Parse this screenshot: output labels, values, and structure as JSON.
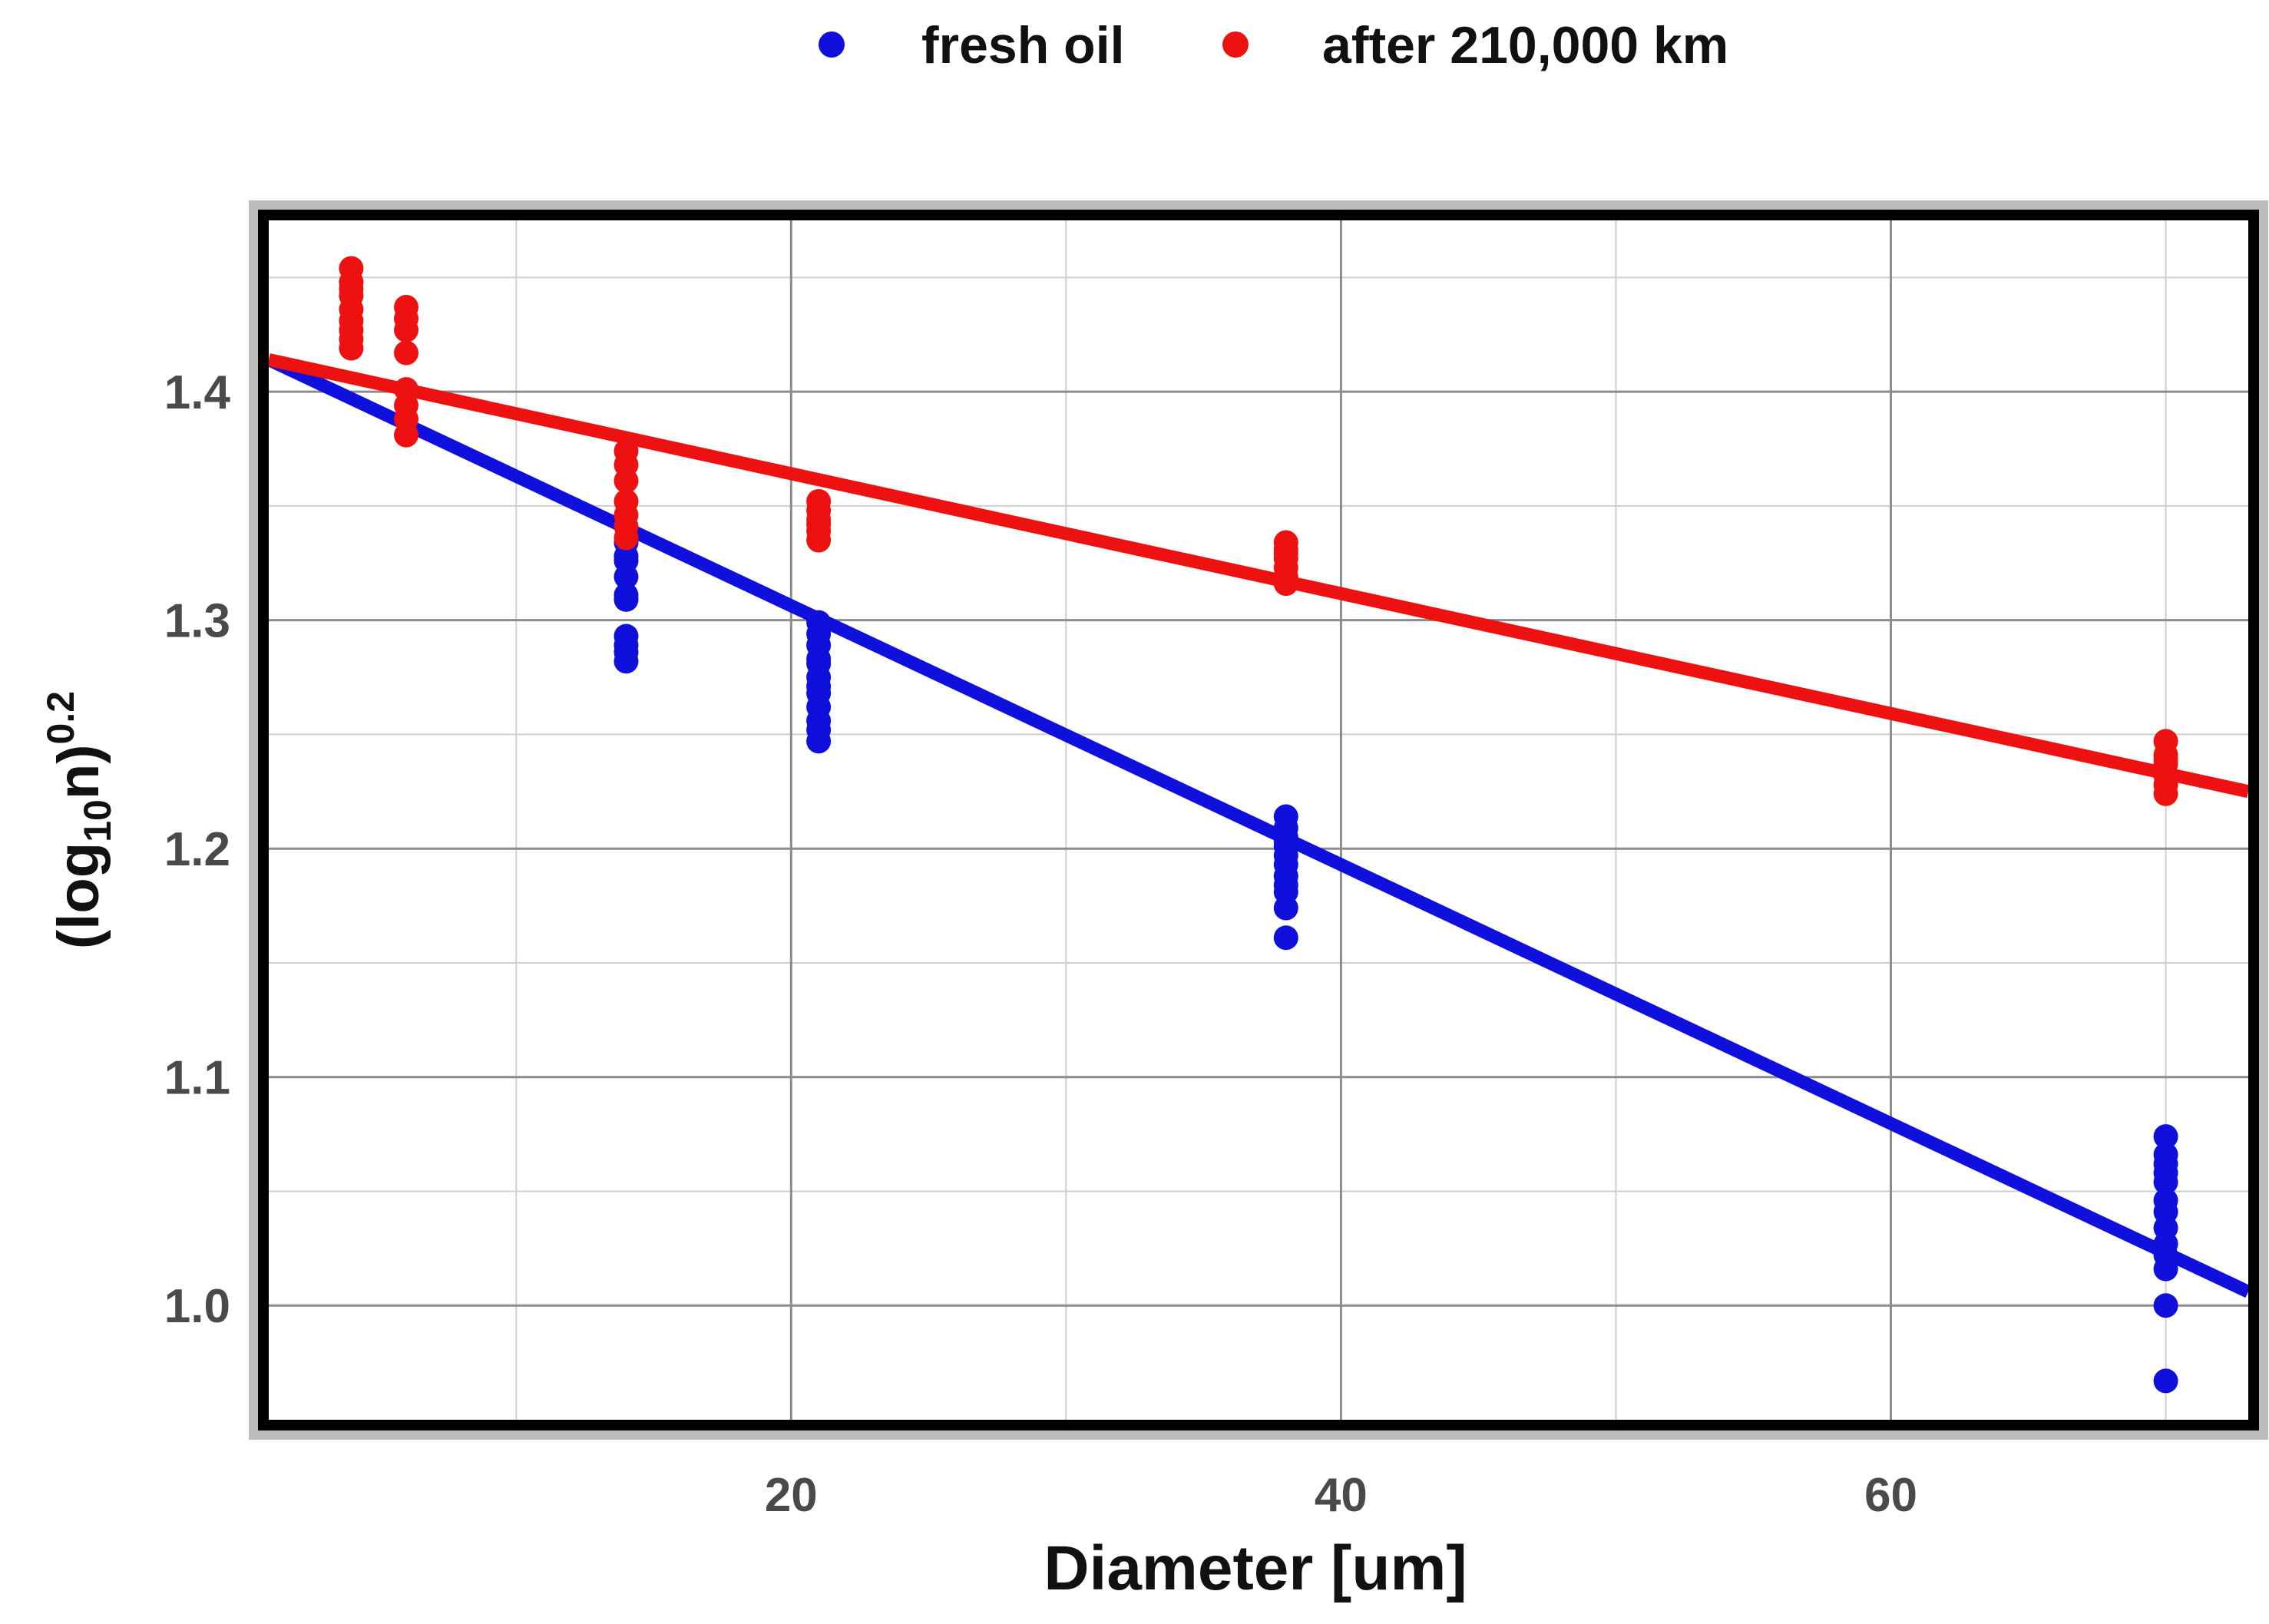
{
  "chart_data": {
    "type": "scatter",
    "title": "",
    "xlabel": "Diameter [um]",
    "ylabel": {
      "prefix": "(log",
      "subscript": "10",
      "middle": "n)",
      "superscript": "0.2"
    },
    "xlim": [
      1,
      73
    ],
    "ylim": [
      0.95,
      1.475
    ],
    "x_ticks": [
      20,
      40,
      60
    ],
    "y_ticks": [
      1.0,
      1.1,
      1.2,
      1.3,
      1.4
    ],
    "x_tick_labels": [
      "20",
      "40",
      "60"
    ],
    "y_tick_labels": [
      "1.0",
      "1.1",
      "1.2",
      "1.3",
      "1.4"
    ],
    "x_minor_gridlines": [
      10,
      30,
      50,
      70
    ],
    "y_minor_gridlines": [
      1.05,
      1.15,
      1.25,
      1.35,
      1.45
    ],
    "grid": true,
    "legend_position": "top",
    "series": [
      {
        "name": "fresh oil",
        "color": "#1010dd",
        "x": [
          14,
          14,
          14,
          14,
          14,
          14,
          14,
          14,
          14,
          14,
          21,
          21,
          21,
          21,
          21,
          21,
          21,
          21,
          21,
          21,
          21,
          21,
          38,
          38,
          38,
          38,
          38,
          38,
          38,
          38,
          38,
          38,
          38,
          38,
          70,
          70,
          70,
          70,
          70,
          70,
          70,
          70,
          70,
          70,
          70,
          70,
          70
        ],
        "y": [
          1.334,
          1.326,
          1.319,
          1.311,
          1.293,
          1.289,
          1.286,
          1.282,
          1.309,
          1.328,
          1.299,
          1.294,
          1.289,
          1.281,
          1.275,
          1.268,
          1.262,
          1.256,
          1.252,
          1.247,
          1.283,
          1.271,
          1.214,
          1.209,
          1.205,
          1.201,
          1.197,
          1.193,
          1.188,
          1.184,
          1.181,
          1.174,
          1.161,
          1.203,
          1.074,
          1.066,
          1.062,
          1.054,
          1.046,
          1.041,
          1.034,
          1.027,
          1.022,
          1.016,
          1.0,
          0.967,
          1.058
        ]
      },
      {
        "name": "after 210,000 km",
        "color": "#ee1111",
        "x": [
          4,
          4,
          4,
          4,
          4,
          4,
          4,
          4,
          4,
          6,
          6,
          6,
          6,
          6,
          6,
          6,
          6,
          14,
          14,
          14,
          14,
          14,
          14,
          14,
          21,
          21,
          21,
          21,
          21,
          21,
          38,
          38,
          38,
          38,
          38,
          38,
          38,
          70,
          70,
          70,
          70,
          70,
          70,
          70
        ],
        "y": [
          1.454,
          1.448,
          1.442,
          1.436,
          1.431,
          1.427,
          1.423,
          1.419,
          1.445,
          1.437,
          1.432,
          1.427,
          1.417,
          1.401,
          1.394,
          1.388,
          1.381,
          1.374,
          1.368,
          1.361,
          1.352,
          1.346,
          1.341,
          1.336,
          1.352,
          1.348,
          1.344,
          1.339,
          1.335,
          1.342,
          1.334,
          1.331,
          1.327,
          1.323,
          1.319,
          1.316,
          1.329,
          1.247,
          1.241,
          1.237,
          1.232,
          1.228,
          1.224,
          1.239
        ]
      }
    ],
    "fit_lines": [
      {
        "series": "fresh oil",
        "color": "#1010dd",
        "x": [
          1,
          73
        ],
        "y": [
          1.414,
          1.006
        ]
      },
      {
        "series": "after 210,000 km",
        "color": "#ee1111",
        "x": [
          1,
          73
        ],
        "y": [
          1.414,
          1.225
        ]
      }
    ]
  }
}
